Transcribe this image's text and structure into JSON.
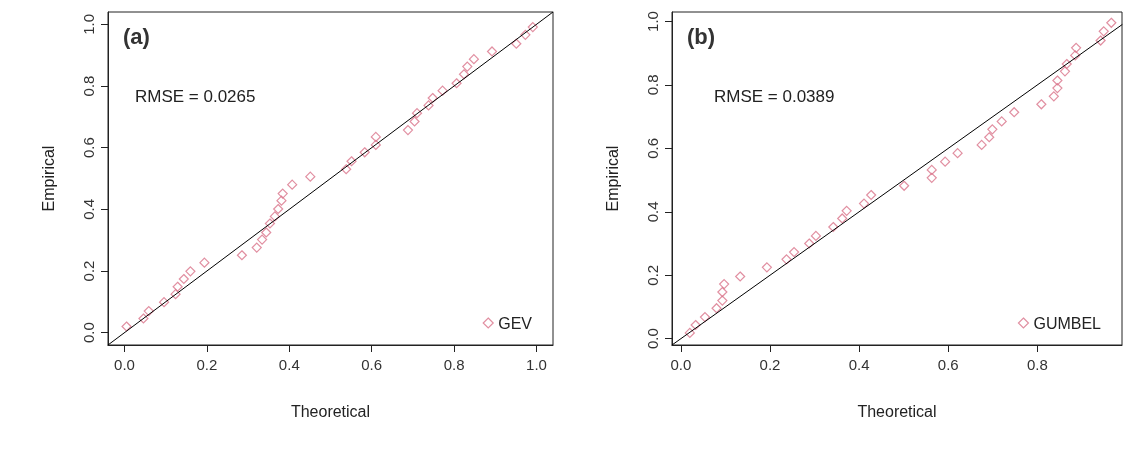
{
  "chart_data": [
    {
      "type": "scatter",
      "title": "(a)",
      "xlabel": "Theoretical",
      "ylabel": "Empirical",
      "annotations": [
        "RMSE = 0.0265"
      ],
      "legend": "bottom right",
      "marker": "diamond",
      "xlim": [
        -0.04,
        1.04
      ],
      "ylim": [
        -0.04,
        1.04
      ],
      "xticks": [
        {
          "value": 0,
          "label": "0.0"
        },
        {
          "value": 0.2,
          "label": "0.2"
        },
        {
          "value": 0.4,
          "label": "0.4"
        },
        {
          "value": 0.6,
          "label": "0.6"
        },
        {
          "value": 0.8,
          "label": "0.8"
        },
        {
          "value": 1,
          "label": "1.0"
        }
      ],
      "yticks": [
        {
          "value": 0,
          "label": "0.0"
        },
        {
          "value": 0.2,
          "label": "0.2"
        },
        {
          "value": 0.4,
          "label": "0.4"
        },
        {
          "value": 0.6,
          "label": "0.6"
        },
        {
          "value": 0.8,
          "label": "0.8"
        },
        {
          "value": 1,
          "label": "1.0"
        }
      ],
      "series": [
        {
          "name": "GEV",
          "color": "#d9738a",
          "x": [
            0.005,
            0.046,
            0.059,
            0.096,
            0.124,
            0.129,
            0.144,
            0.16,
            0.194,
            0.285,
            0.321,
            0.334,
            0.344,
            0.353,
            0.365,
            0.373,
            0.381,
            0.384,
            0.407,
            0.451,
            0.538,
            0.551,
            0.583,
            0.61,
            0.61,
            0.688,
            0.704,
            0.71,
            0.738,
            0.748,
            0.772,
            0.806,
            0.824,
            0.832,
            0.848,
            0.892,
            0.951,
            0.973,
            0.991
          ],
          "values": [
            0.02,
            0.046,
            0.07,
            0.099,
            0.125,
            0.149,
            0.174,
            0.199,
            0.227,
            0.251,
            0.276,
            0.302,
            0.325,
            0.354,
            0.377,
            0.401,
            0.428,
            0.451,
            0.48,
            0.506,
            0.53,
            0.556,
            0.585,
            0.609,
            0.635,
            0.657,
            0.685,
            0.712,
            0.737,
            0.761,
            0.785,
            0.809,
            0.838,
            0.863,
            0.887,
            0.912,
            0.937,
            0.966,
            0.991
          ]
        },
        {
          "type": "line",
          "color": "#000000",
          "marker": "none",
          "x": [
            -0.04,
            1.04
          ],
          "values": [
            -0.04,
            1.04
          ]
        }
      ]
    },
    {
      "type": "scatter",
      "title": "(b)",
      "xlabel": "Theoretical",
      "ylabel": "Empirical",
      "annotations": [
        "RMSE = 0.0389"
      ],
      "legend": "bottom right",
      "marker": "diamond",
      "xlim": [
        -0.02,
        0.99
      ],
      "ylim": [
        -0.02,
        1.03
      ],
      "xticks": [
        {
          "value": 0,
          "label": "0.0"
        },
        {
          "value": 0.2,
          "label": "0.2"
        },
        {
          "value": 0.4,
          "label": "0.4"
        },
        {
          "value": 0.6,
          "label": "0.6"
        },
        {
          "value": 0.8,
          "label": "0.8"
        }
      ],
      "yticks": [
        {
          "value": 0,
          "label": "0.0"
        },
        {
          "value": 0.2,
          "label": "0.2"
        },
        {
          "value": 0.4,
          "label": "0.4"
        },
        {
          "value": 0.6,
          "label": "0.6"
        },
        {
          "value": 0.8,
          "label": "0.8"
        },
        {
          "value": 1,
          "label": "1.0"
        }
      ],
      "series": [
        {
          "name": "GUMBEL",
          "color": "#d9738a",
          "x": [
            0.02,
            0.033,
            0.054,
            0.08,
            0.093,
            0.093,
            0.097,
            0.133,
            0.193,
            0.237,
            0.254,
            0.288,
            0.303,
            0.342,
            0.362,
            0.372,
            0.411,
            0.427,
            0.501,
            0.563,
            0.563,
            0.593,
            0.621,
            0.675,
            0.692,
            0.699,
            0.72,
            0.748,
            0.809,
            0.837,
            0.845,
            0.845,
            0.862,
            0.866,
            0.885,
            0.887,
            0.942,
            0.949,
            0.966
          ],
          "values": [
            0.018,
            0.043,
            0.068,
            0.096,
            0.12,
            0.147,
            0.172,
            0.196,
            0.225,
            0.25,
            0.273,
            0.3,
            0.324,
            0.352,
            0.379,
            0.403,
            0.426,
            0.453,
            0.482,
            0.507,
            0.532,
            0.558,
            0.585,
            0.611,
            0.635,
            0.66,
            0.685,
            0.714,
            0.739,
            0.764,
            0.79,
            0.814,
            0.843,
            0.866,
            0.893,
            0.917,
            0.94,
            0.969,
            0.996
          ]
        },
        {
          "type": "line",
          "color": "#000000",
          "marker": "none",
          "x": [
            -0.02,
            0.99
          ],
          "values": [
            -0.02,
            0.99
          ]
        }
      ]
    }
  ]
}
